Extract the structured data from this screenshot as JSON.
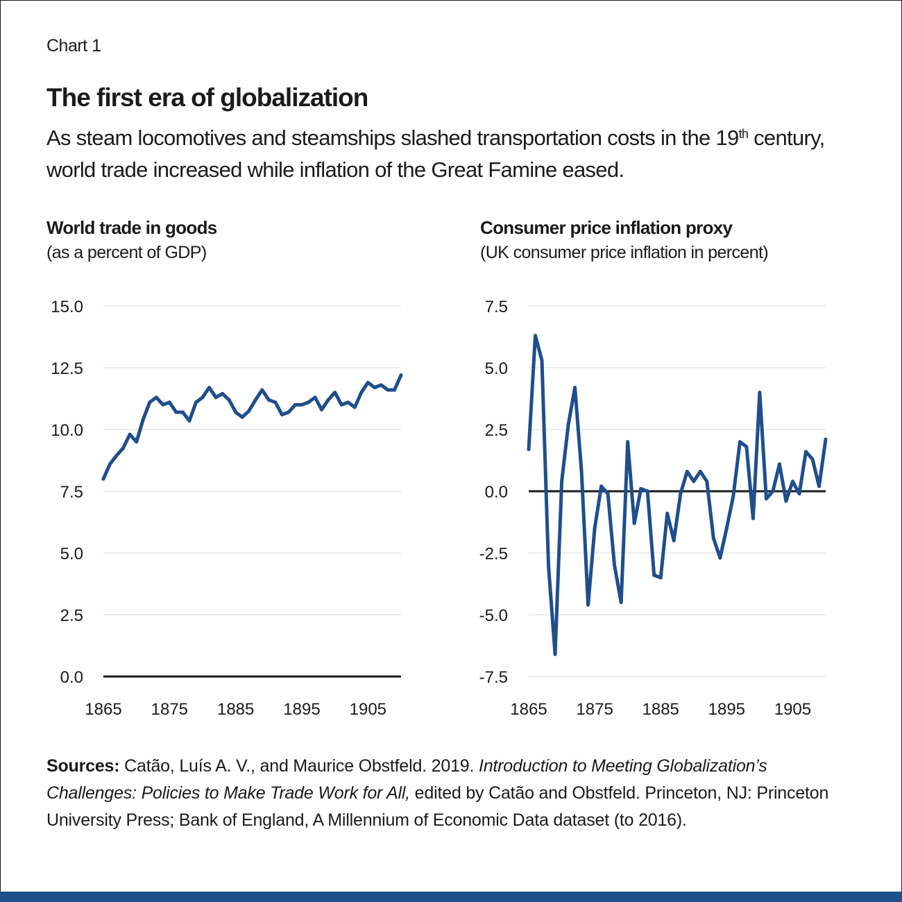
{
  "header": {
    "chart_label": "Chart 1",
    "title": "The first era of globalization",
    "subtitle_part1": "As steam locomotives and steamships slashed transportation costs in the 19",
    "subtitle_sup": "th",
    "subtitle_part2": " century, world trade increased while inflation of the Great Famine eased."
  },
  "sources": {
    "label": "Sources:",
    "text1": " Catão, Luís A. V., and Maurice Obstfeld. 2019. ",
    "italic": "Introduction to Meeting Globalization’s Challenges: Policies to Make Trade Work for All,",
    "text2": " edited by Catão and Obstfeld. Princeton, NJ: Princeton University Press; Bank of England, A Millennium of Economic Data dataset (to 2016)."
  },
  "colors": {
    "line": "#1f4e8c",
    "grid": "#e6e6e6",
    "axis": "#1a1a1a"
  },
  "chart_data": [
    {
      "type": "line",
      "title": "World trade in goods",
      "subtitle": "(as a percent of GDP)",
      "xlabel": "",
      "ylabel": "",
      "xlim": [
        1865,
        1910
      ],
      "ylim": [
        0,
        15
      ],
      "yticks": [
        0,
        2.5,
        5,
        7.5,
        10,
        12.5,
        15
      ],
      "ytick_labels": [
        "0.0",
        "2.5",
        "5.0",
        "7.5",
        "10.0",
        "12.5",
        "15.0"
      ],
      "xticks": [
        1865,
        1875,
        1885,
        1895,
        1905
      ],
      "xtick_labels": [
        "1865",
        "1875",
        "1885",
        "1895",
        "1905"
      ],
      "series": [
        {
          "name": "World trade in goods",
          "x": [
            1865,
            1866,
            1867,
            1868,
            1869,
            1870,
            1871,
            1872,
            1873,
            1874,
            1875,
            1876,
            1877,
            1878,
            1879,
            1880,
            1881,
            1882,
            1883,
            1884,
            1885,
            1886,
            1887,
            1888,
            1889,
            1890,
            1891,
            1892,
            1893,
            1894,
            1895,
            1896,
            1897,
            1898,
            1899,
            1900,
            1901,
            1902,
            1903,
            1904,
            1905,
            1906,
            1907,
            1908,
            1909,
            1910
          ],
          "values": [
            8.0,
            8.6,
            8.95,
            9.25,
            9.8,
            9.5,
            10.4,
            11.1,
            11.3,
            11.0,
            11.1,
            10.7,
            10.7,
            10.35,
            11.1,
            11.3,
            11.7,
            11.3,
            11.45,
            11.2,
            10.7,
            10.5,
            10.75,
            11.2,
            11.6,
            11.2,
            11.1,
            10.6,
            10.7,
            11.0,
            11.0,
            11.1,
            11.3,
            10.8,
            11.2,
            11.5,
            11.0,
            11.1,
            10.9,
            11.5,
            11.9,
            11.7,
            11.8,
            11.6,
            11.6,
            12.2
          ]
        }
      ],
      "grid": true
    },
    {
      "type": "line",
      "title": "Consumer price inflation proxy",
      "subtitle": "(UK consumer price inflation in percent)",
      "xlabel": "",
      "ylabel": "",
      "xlim": [
        1865,
        1910
      ],
      "ylim": [
        -7.5,
        7.5
      ],
      "yticks": [
        -7.5,
        -5,
        -2.5,
        0,
        2.5,
        5,
        7.5
      ],
      "ytick_labels": [
        "-7.5",
        "-5.0",
        "-2.5",
        "0.0",
        "2.5",
        "5.0",
        "7.5"
      ],
      "xticks": [
        1865,
        1875,
        1885,
        1895,
        1905
      ],
      "xtick_labels": [
        "1865",
        "1875",
        "1885",
        "1895",
        "1905"
      ],
      "series": [
        {
          "name": "UK consumer price inflation",
          "x": [
            1865,
            1866,
            1867,
            1868,
            1869,
            1870,
            1871,
            1872,
            1873,
            1874,
            1875,
            1876,
            1877,
            1878,
            1879,
            1880,
            1881,
            1882,
            1883,
            1884,
            1885,
            1886,
            1887,
            1888,
            1889,
            1890,
            1891,
            1892,
            1893,
            1894,
            1895,
            1896,
            1897,
            1898,
            1899,
            1900,
            1901,
            1902,
            1903,
            1904,
            1905,
            1906,
            1907,
            1908,
            1909,
            1910
          ],
          "values": [
            1.7,
            6.3,
            5.3,
            -3.0,
            -6.6,
            0.4,
            2.7,
            4.2,
            0.8,
            -4.6,
            -1.5,
            0.2,
            -0.1,
            -3.0,
            -4.5,
            2.0,
            -1.3,
            0.1,
            0.0,
            -3.4,
            -3.5,
            -0.9,
            -2.0,
            -0.1,
            0.8,
            0.4,
            0.8,
            0.4,
            -1.9,
            -2.7,
            -1.5,
            -0.2,
            2.0,
            1.8,
            -1.1,
            4.0,
            -0.3,
            0.0,
            1.1,
            -0.4,
            0.4,
            -0.1,
            1.6,
            1.3,
            0.2,
            2.1
          ]
        }
      ],
      "grid": true
    }
  ]
}
